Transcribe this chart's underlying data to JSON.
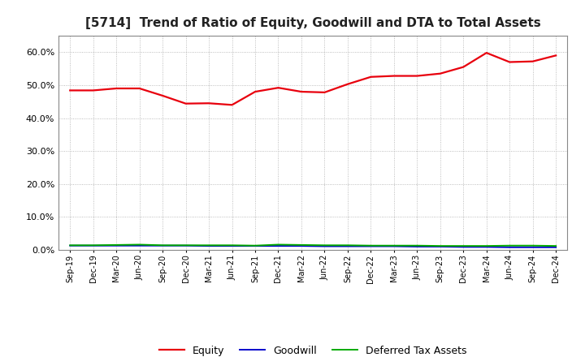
{
  "title": "[5714]  Trend of Ratio of Equity, Goodwill and DTA to Total Assets",
  "x_labels": [
    "Sep-19",
    "Dec-19",
    "Mar-20",
    "Jun-20",
    "Sep-20",
    "Dec-20",
    "Mar-21",
    "Jun-21",
    "Sep-21",
    "Dec-21",
    "Mar-22",
    "Jun-22",
    "Sep-22",
    "Dec-22",
    "Mar-23",
    "Jun-23",
    "Sep-23",
    "Dec-23",
    "Mar-24",
    "Jun-24",
    "Sep-24",
    "Dec-24"
  ],
  "equity": [
    0.484,
    0.484,
    0.49,
    0.49,
    0.468,
    0.444,
    0.445,
    0.44,
    0.48,
    0.492,
    0.48,
    0.478,
    0.503,
    0.525,
    0.528,
    0.528,
    0.535,
    0.555,
    0.598,
    0.57,
    0.572,
    0.59
  ],
  "goodwill": [
    0.013,
    0.013,
    0.013,
    0.013,
    0.013,
    0.013,
    0.012,
    0.012,
    0.012,
    0.012,
    0.012,
    0.011,
    0.011,
    0.011,
    0.011,
    0.01,
    0.01,
    0.009,
    0.009,
    0.008,
    0.008,
    0.008
  ],
  "dta": [
    0.014,
    0.014,
    0.015,
    0.016,
    0.014,
    0.014,
    0.014,
    0.014,
    0.013,
    0.016,
    0.015,
    0.014,
    0.014,
    0.013,
    0.013,
    0.013,
    0.012,
    0.012,
    0.012,
    0.013,
    0.013,
    0.012
  ],
  "equity_color": "#e8000d",
  "goodwill_color": "#0000cc",
  "dta_color": "#00aa00",
  "ylim": [
    0.0,
    0.65
  ],
  "yticks": [
    0.0,
    0.1,
    0.2,
    0.3,
    0.4,
    0.5,
    0.6
  ],
  "background_color": "#ffffff",
  "grid_color": "#aaaaaa",
  "title_fontsize": 11,
  "legend_labels": [
    "Equity",
    "Goodwill",
    "Deferred Tax Assets"
  ]
}
